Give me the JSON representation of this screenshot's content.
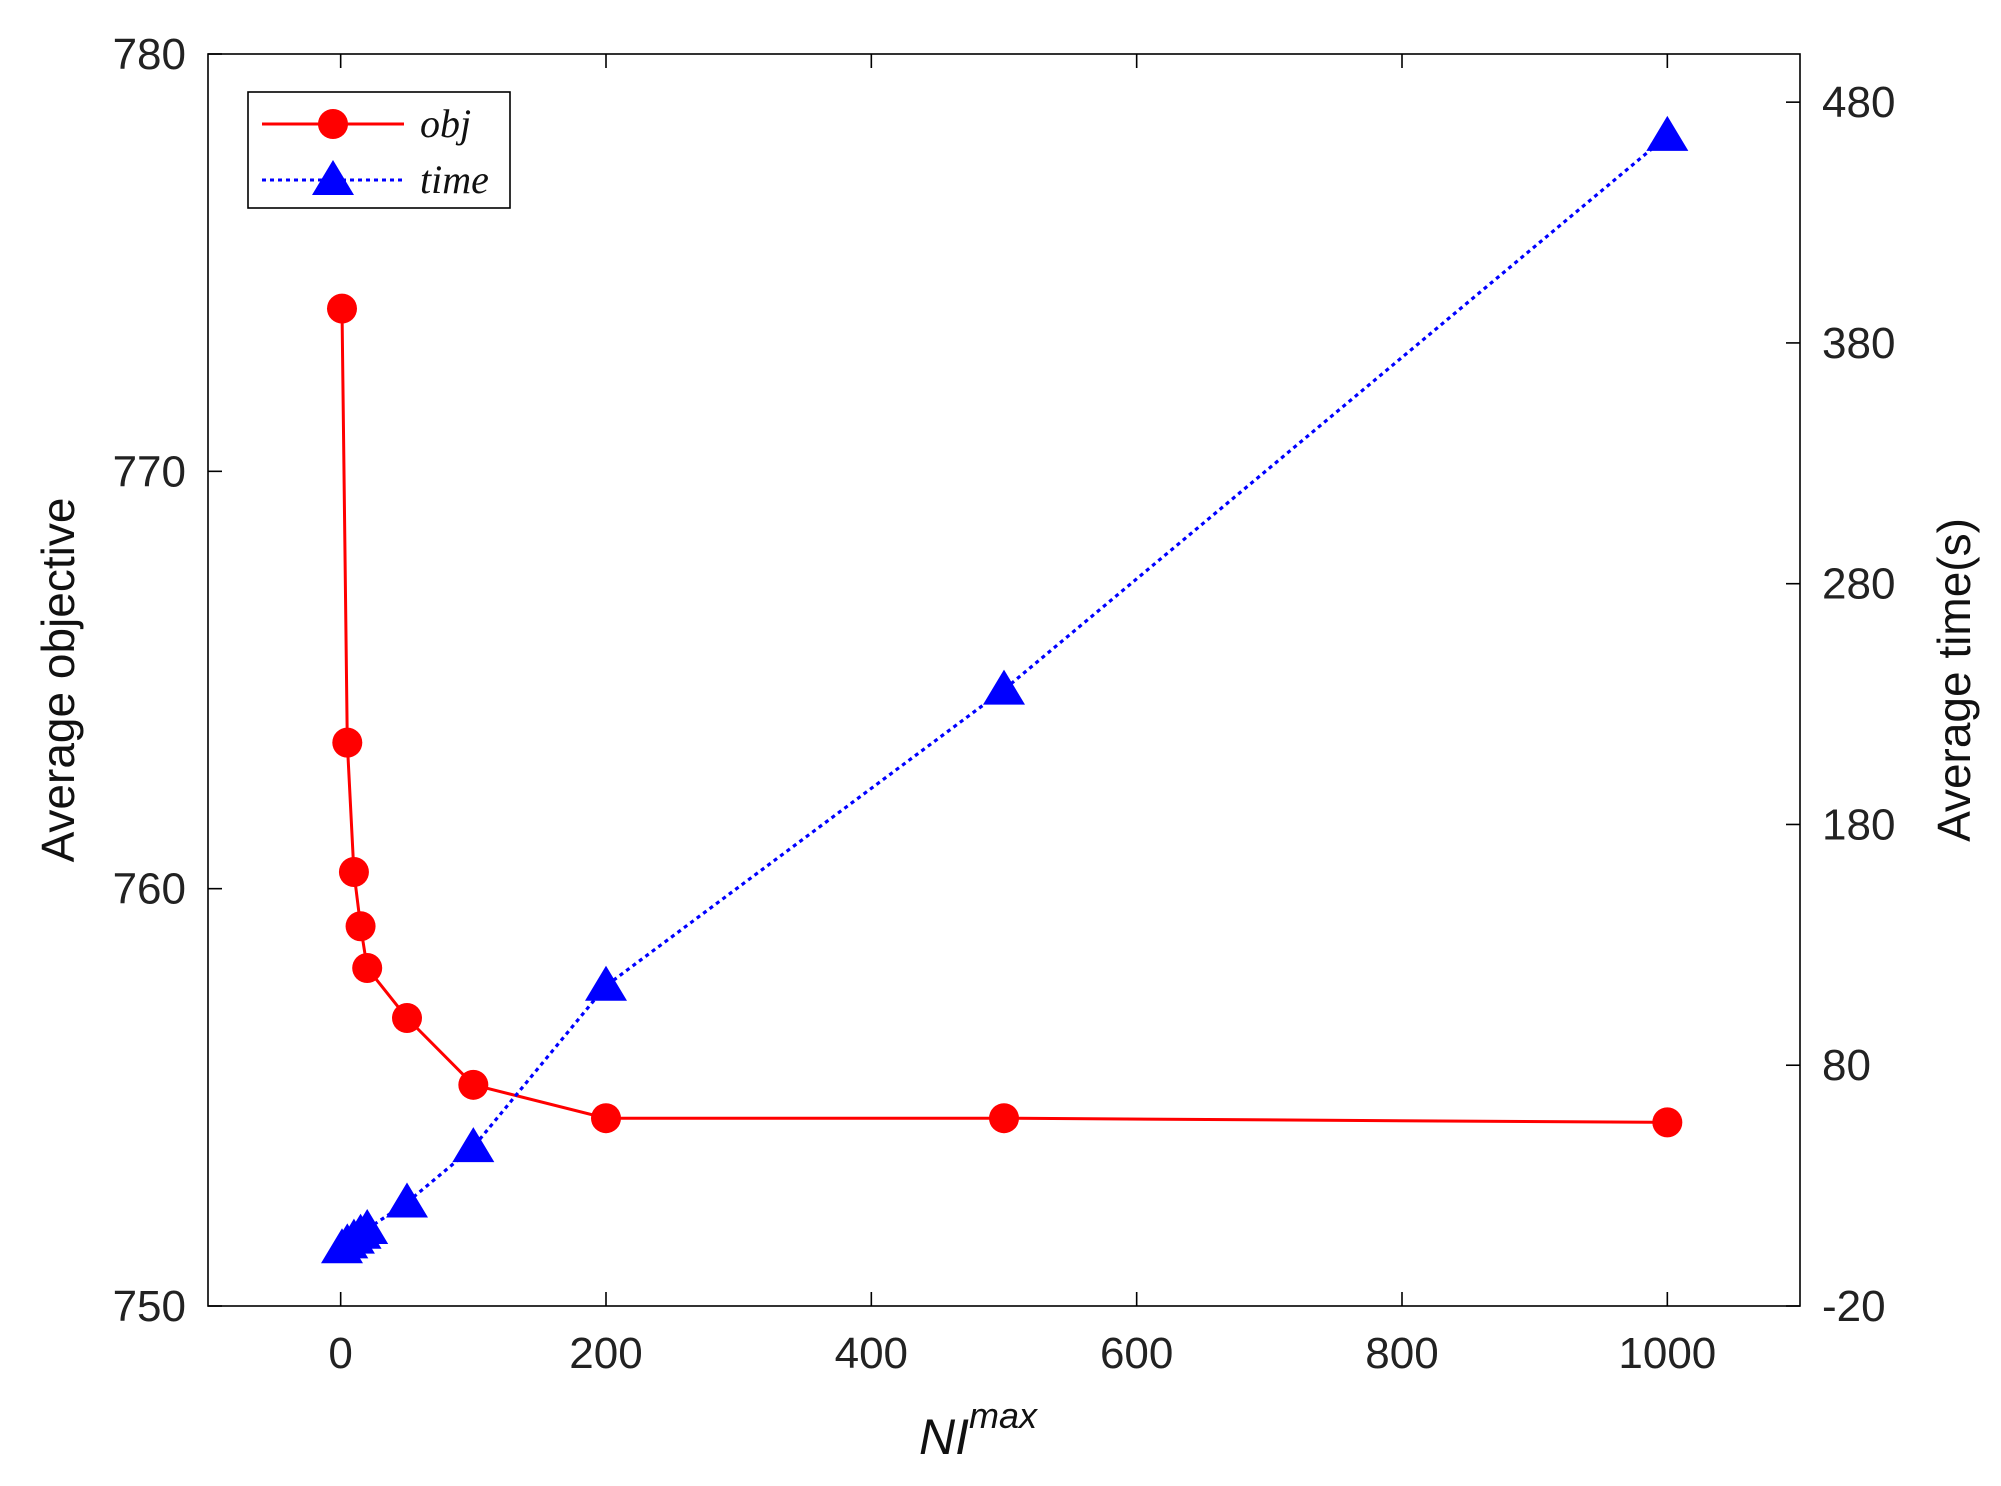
{
  "chart_data": {
    "type": "line",
    "x_axis": {
      "label_base": "NI",
      "label_sup": "max",
      "range": [
        -100,
        1100
      ],
      "ticks": [
        0,
        200,
        400,
        600,
        800,
        1000
      ],
      "tick_labels": [
        "0",
        "200",
        "400",
        "600",
        "800",
        "1000"
      ]
    },
    "y_axis_left": {
      "label": "Average objective",
      "range": [
        750,
        780
      ],
      "ticks": [
        750,
        760,
        770,
        780
      ],
      "tick_labels": [
        "750",
        "760",
        "770",
        "780"
      ]
    },
    "y_axis_right": {
      "label": "Average time(s)",
      "range": [
        -20,
        500
      ],
      "ticks": [
        -20,
        80,
        180,
        280,
        380,
        480
      ],
      "tick_labels": [
        "-20",
        "80",
        "180",
        "280",
        "380",
        "480"
      ]
    },
    "legend": {
      "placement": "top-left",
      "entries": [
        "obj",
        "time"
      ]
    },
    "grid": false,
    "series": [
      {
        "name": "obj",
        "axis": "left",
        "color": "#ff0000",
        "line_style": "solid",
        "marker": "circle",
        "x": [
          1,
          5,
          10,
          15,
          20,
          50,
          100,
          200,
          500,
          1000
        ],
        "y": [
          773.9,
          763.5,
          760.4,
          759.1,
          758.1,
          756.9,
          755.3,
          754.5,
          754.5,
          754.4
        ]
      },
      {
        "name": "time",
        "axis": "right",
        "color": "#0000ff",
        "line_style": "dotted",
        "marker": "triangle",
        "x": [
          1,
          5,
          10,
          15,
          20,
          50,
          100,
          200,
          500,
          1000
        ],
        "y": [
          4,
          6,
          8,
          10,
          12,
          23,
          46,
          113,
          236,
          466
        ]
      }
    ]
  }
}
